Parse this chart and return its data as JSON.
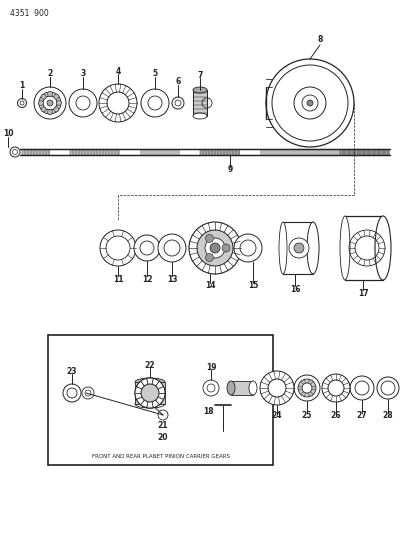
{
  "title": "4351  900",
  "bg_color": "#ffffff",
  "line_color": "#222222",
  "fig_width": 4.08,
  "fig_height": 5.33,
  "dpi": 100,
  "box_label": "FRONT AND REAR PLANET PINION CARRIER GEARS"
}
